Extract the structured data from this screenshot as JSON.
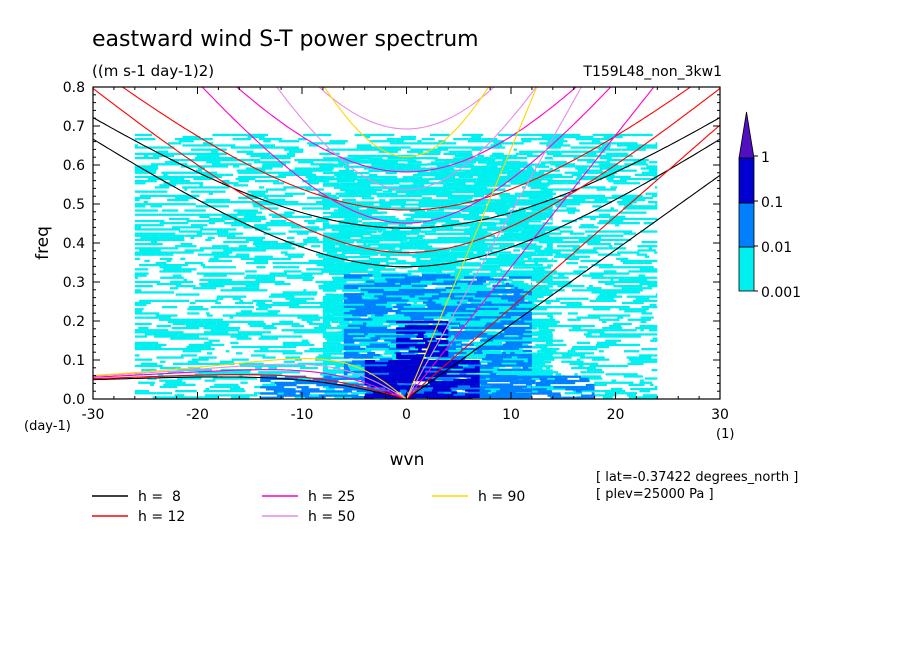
{
  "chart_data": {
    "type": "heatmap",
    "title": "eastward wind S-T power spectrum",
    "subtitle": "((m s-1 day-1)2)",
    "run_label": "T159L48_non_3kw1",
    "xlabel": "wvn",
    "ylabel": "freq",
    "x_unit": "(1)",
    "y_unit": "(day-1)",
    "xlim": [
      -30,
      30
    ],
    "ylim": [
      0,
      0.8
    ],
    "x_ticks": [
      -30,
      -20,
      -10,
      0,
      10,
      20,
      30
    ],
    "y_ticks": [
      0.0,
      0.1,
      0.2,
      0.3,
      0.4,
      0.5,
      0.6,
      0.7,
      0.8
    ],
    "x_tick_labels": [
      "-30",
      "-20",
      "-10",
      "0",
      "10",
      "20",
      "30"
    ],
    "y_tick_labels": [
      "0.0",
      "0.1",
      "0.2",
      "0.3",
      "0.4",
      "0.5",
      "0.6",
      "0.7",
      "0.8"
    ],
    "colorbar": {
      "levels": [
        "0.001",
        "0.01",
        "0.1",
        "1"
      ],
      "colors": [
        "#00f0f0",
        "#0080ff",
        "#0000d0",
        "#5010c0"
      ]
    },
    "power_regions": [
      {
        "level": 0,
        "x": [
          -26,
          24
        ],
        "y": [
          0.0,
          0.68
        ],
        "density": 0.45
      },
      {
        "level": 0,
        "x": [
          -8,
          14
        ],
        "y": [
          0.05,
          0.62
        ],
        "density": 0.65
      },
      {
        "level": 1,
        "x": [
          -6,
          12
        ],
        "y": [
          0.0,
          0.32
        ],
        "density": 0.55
      },
      {
        "level": 1,
        "x": [
          -14,
          18
        ],
        "y": [
          0.0,
          0.06
        ],
        "density": 0.6
      },
      {
        "level": 2,
        "x": [
          -4,
          7
        ],
        "y": [
          0.0,
          0.1
        ],
        "density": 0.7
      },
      {
        "level": 2,
        "x": [
          -1,
          4
        ],
        "y": [
          0.08,
          0.2
        ],
        "density": 0.45
      }
    ],
    "series": [
      {
        "name": "h =  8",
        "h": 8,
        "color": "#000000"
      },
      {
        "name": "h = 12",
        "h": 12,
        "color": "#ff0000"
      },
      {
        "name": "h = 25",
        "h": 25,
        "color": "#ff00cc"
      },
      {
        "name": "h = 50",
        "h": 50,
        "color": "#e68ce6"
      },
      {
        "name": "h = 90",
        "h": 90,
        "color": "#ffd700"
      }
    ],
    "annotations": [
      "[ lat=-0.37422 degrees_north ]",
      "[ plev=25000 Pa ]"
    ]
  }
}
